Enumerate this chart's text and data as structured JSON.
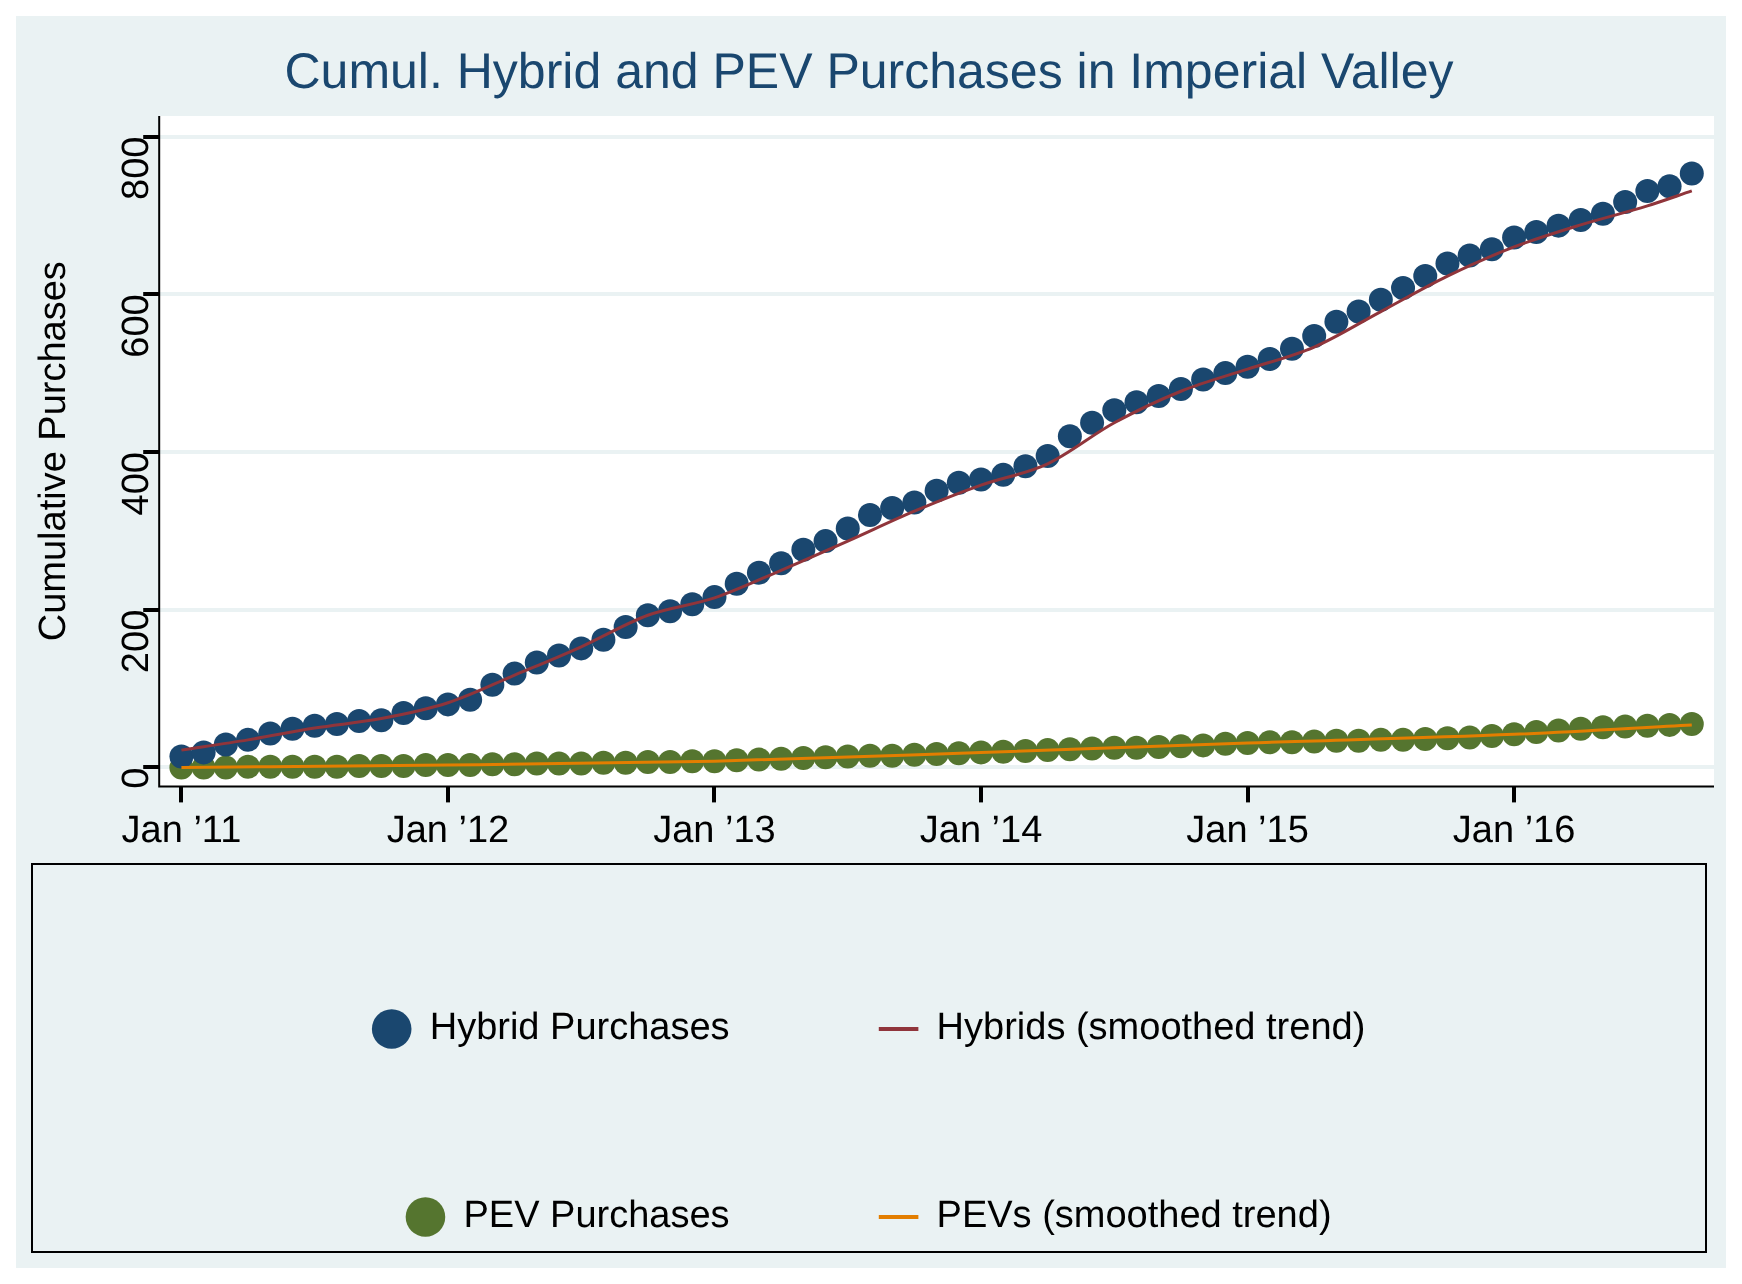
{
  "chart_data": {
    "type": "scatter",
    "title": "Cumul. Hybrid and PEV Purchases in Imperial Valley",
    "ylabel": "Cumulative Purchases",
    "xlim": [
      "2010-12",
      "2016-10"
    ],
    "xticks": [
      {
        "value": "2011-01",
        "label": "Jan ’11"
      },
      {
        "value": "2012-01",
        "label": "Jan ’12"
      },
      {
        "value": "2013-01",
        "label": "Jan ’13"
      },
      {
        "value": "2014-01",
        "label": "Jan ’14"
      },
      {
        "value": "2015-01",
        "label": "Jan ’15"
      },
      {
        "value": "2016-01",
        "label": "Jan ’16"
      }
    ],
    "ylim": [
      -24,
      826
    ],
    "yticks": [
      0,
      200,
      400,
      600,
      800
    ],
    "grid": "y",
    "legend": "bottom",
    "series": [
      {
        "name": "Hybrid Purchases",
        "marker": "circle",
        "color": "#1a476f",
        "x": [
          "2011-01",
          "2011-02",
          "2011-03",
          "2011-04",
          "2011-05",
          "2011-06",
          "2011-07",
          "2011-08",
          "2011-09",
          "2011-10",
          "2011-11",
          "2011-12",
          "2012-01",
          "2012-02",
          "2012-03",
          "2012-04",
          "2012-05",
          "2012-06",
          "2012-07",
          "2012-08",
          "2012-09",
          "2012-10",
          "2012-11",
          "2012-12",
          "2013-01",
          "2013-02",
          "2013-03",
          "2013-04",
          "2013-05",
          "2013-06",
          "2013-07",
          "2013-08",
          "2013-09",
          "2013-10",
          "2013-11",
          "2013-12",
          "2014-01",
          "2014-02",
          "2014-03",
          "2014-04",
          "2014-05",
          "2014-06",
          "2014-07",
          "2014-08",
          "2014-09",
          "2014-10",
          "2014-11",
          "2014-12",
          "2015-01",
          "2015-02",
          "2015-03",
          "2015-04",
          "2015-05",
          "2015-06",
          "2015-07",
          "2015-08",
          "2015-09",
          "2015-10",
          "2015-11",
          "2015-12",
          "2016-01",
          "2016-02",
          "2016-03",
          "2016-04",
          "2016-05",
          "2016-06",
          "2016-07",
          "2016-08",
          "2016-09"
        ],
        "values": [
          14,
          19,
          29,
          35,
          43,
          49,
          53,
          55,
          59,
          60,
          69,
          75,
          80,
          86,
          105,
          119,
          133,
          142,
          151,
          162,
          178,
          193,
          198,
          207,
          216,
          233,
          247,
          259,
          276,
          287,
          303,
          320,
          329,
          336,
          351,
          361,
          365,
          371,
          382,
          395,
          420,
          437,
          453,
          463,
          471,
          480,
          492,
          500,
          508,
          518,
          531,
          547,
          565,
          578,
          593,
          608,
          623,
          639,
          649,
          657,
          672,
          679,
          687,
          694,
          702,
          717,
          731,
          737,
          753
        ]
      },
      {
        "name": "Hybrids (smoothed trend)",
        "type": "line",
        "marker": "none",
        "color": "#90353b",
        "x": [
          "2011-01",
          "2011-04",
          "2011-07",
          "2011-10",
          "2012-01",
          "2012-04",
          "2012-07",
          "2012-10",
          "2013-01",
          "2013-04",
          "2013-07",
          "2013-10",
          "2014-01",
          "2014-04",
          "2014-07",
          "2014-10",
          "2015-01",
          "2015-04",
          "2015-07",
          "2015-10",
          "2016-01",
          "2016-04",
          "2016-07",
          "2016-09"
        ],
        "values": [
          22,
          35,
          50,
          62,
          82,
          117,
          153,
          193,
          215,
          250,
          287,
          325,
          358,
          385,
          437,
          477,
          505,
          533,
          578,
          623,
          660,
          688,
          712,
          731
        ]
      },
      {
        "name": "PEV Purchases",
        "marker": "circle",
        "color": "#55752f",
        "x": [
          "2011-01",
          "2011-02",
          "2011-03",
          "2011-04",
          "2011-05",
          "2011-06",
          "2011-07",
          "2011-08",
          "2011-09",
          "2011-10",
          "2011-11",
          "2011-12",
          "2012-01",
          "2012-02",
          "2012-03",
          "2012-04",
          "2012-05",
          "2012-06",
          "2012-07",
          "2012-08",
          "2012-09",
          "2012-10",
          "2012-11",
          "2012-12",
          "2013-01",
          "2013-02",
          "2013-03",
          "2013-04",
          "2013-05",
          "2013-06",
          "2013-07",
          "2013-08",
          "2013-09",
          "2013-10",
          "2013-11",
          "2013-12",
          "2014-01",
          "2014-02",
          "2014-03",
          "2014-04",
          "2014-05",
          "2014-06",
          "2014-07",
          "2014-08",
          "2014-09",
          "2014-10",
          "2014-11",
          "2014-12",
          "2015-01",
          "2015-02",
          "2015-03",
          "2015-04",
          "2015-05",
          "2015-06",
          "2015-07",
          "2015-08",
          "2015-09",
          "2015-10",
          "2015-11",
          "2015-12",
          "2016-01",
          "2016-02",
          "2016-03",
          "2016-04",
          "2016-05",
          "2016-06",
          "2016-07",
          "2016-08",
          "2016-09"
        ],
        "values": [
          0,
          0,
          0,
          1,
          1,
          1,
          1,
          1,
          2,
          2,
          2,
          3,
          3,
          3,
          4,
          4,
          5,
          5,
          5,
          6,
          6,
          7,
          7,
          8,
          8,
          9,
          10,
          11,
          12,
          13,
          14,
          15,
          15,
          16,
          17,
          18,
          19,
          20,
          21,
          22,
          23,
          24,
          25,
          25,
          26,
          27,
          28,
          30,
          31,
          32,
          32,
          33,
          34,
          34,
          35,
          35,
          36,
          37,
          38,
          40,
          42,
          45,
          47,
          49,
          51,
          52,
          53,
          54,
          55
        ]
      },
      {
        "name": "PEVs (smoothed trend)",
        "type": "line",
        "marker": "none",
        "color": "#e37e00",
        "x": [
          "2011-01",
          "2012-01",
          "2013-01",
          "2014-01",
          "2015-01",
          "2016-01",
          "2016-09"
        ],
        "values": [
          0,
          3,
          8,
          19,
          31,
          42,
          54
        ]
      }
    ]
  }
}
